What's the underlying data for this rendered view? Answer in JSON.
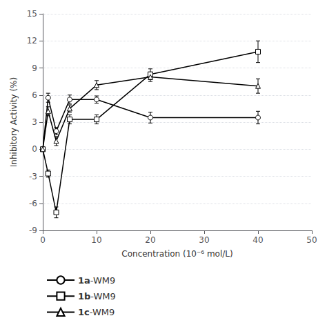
{
  "chart_data": {
    "type": "line",
    "xlabel": "Concentration (10⁻⁶ mol/L)",
    "ylabel": "Inhibitory Activity (%)",
    "x": [
      0,
      1,
      2.5,
      5,
      10,
      20,
      40
    ],
    "series": [
      {
        "name": "1a-WM9",
        "color": "#000000",
        "marker": "circle",
        "values": [
          0,
          5.7,
          2.0,
          5.5,
          5.5,
          3.5,
          3.5
        ],
        "yerr": [
          0,
          0.5,
          0.4,
          0.5,
          0.4,
          0.6,
          0.7
        ]
      },
      {
        "name": "1b-WM9",
        "color": "#000000",
        "marker": "square",
        "values": [
          0,
          -2.7,
          -7.0,
          3.3,
          3.3,
          8.3,
          10.8
        ],
        "yerr": [
          0,
          0.4,
          0.6,
          0.5,
          0.5,
          0.6,
          1.2
        ]
      },
      {
        "name": "1c-WM9",
        "color": "#000000",
        "marker": "triangle",
        "values": [
          0,
          4.2,
          0.9,
          4.5,
          7.1,
          8.0,
          7.0
        ],
        "yerr": [
          0,
          0.5,
          0.5,
          0.4,
          0.5,
          0.5,
          0.8
        ]
      }
    ],
    "xlim": [
      0,
      50
    ],
    "xticks": [
      0,
      10,
      20,
      30,
      40,
      50
    ],
    "ylim": [
      -9,
      15
    ],
    "yticks": [
      -9,
      -6,
      -3,
      0,
      3,
      6,
      9,
      12,
      15
    ],
    "grid": true,
    "legend": "bottom"
  }
}
